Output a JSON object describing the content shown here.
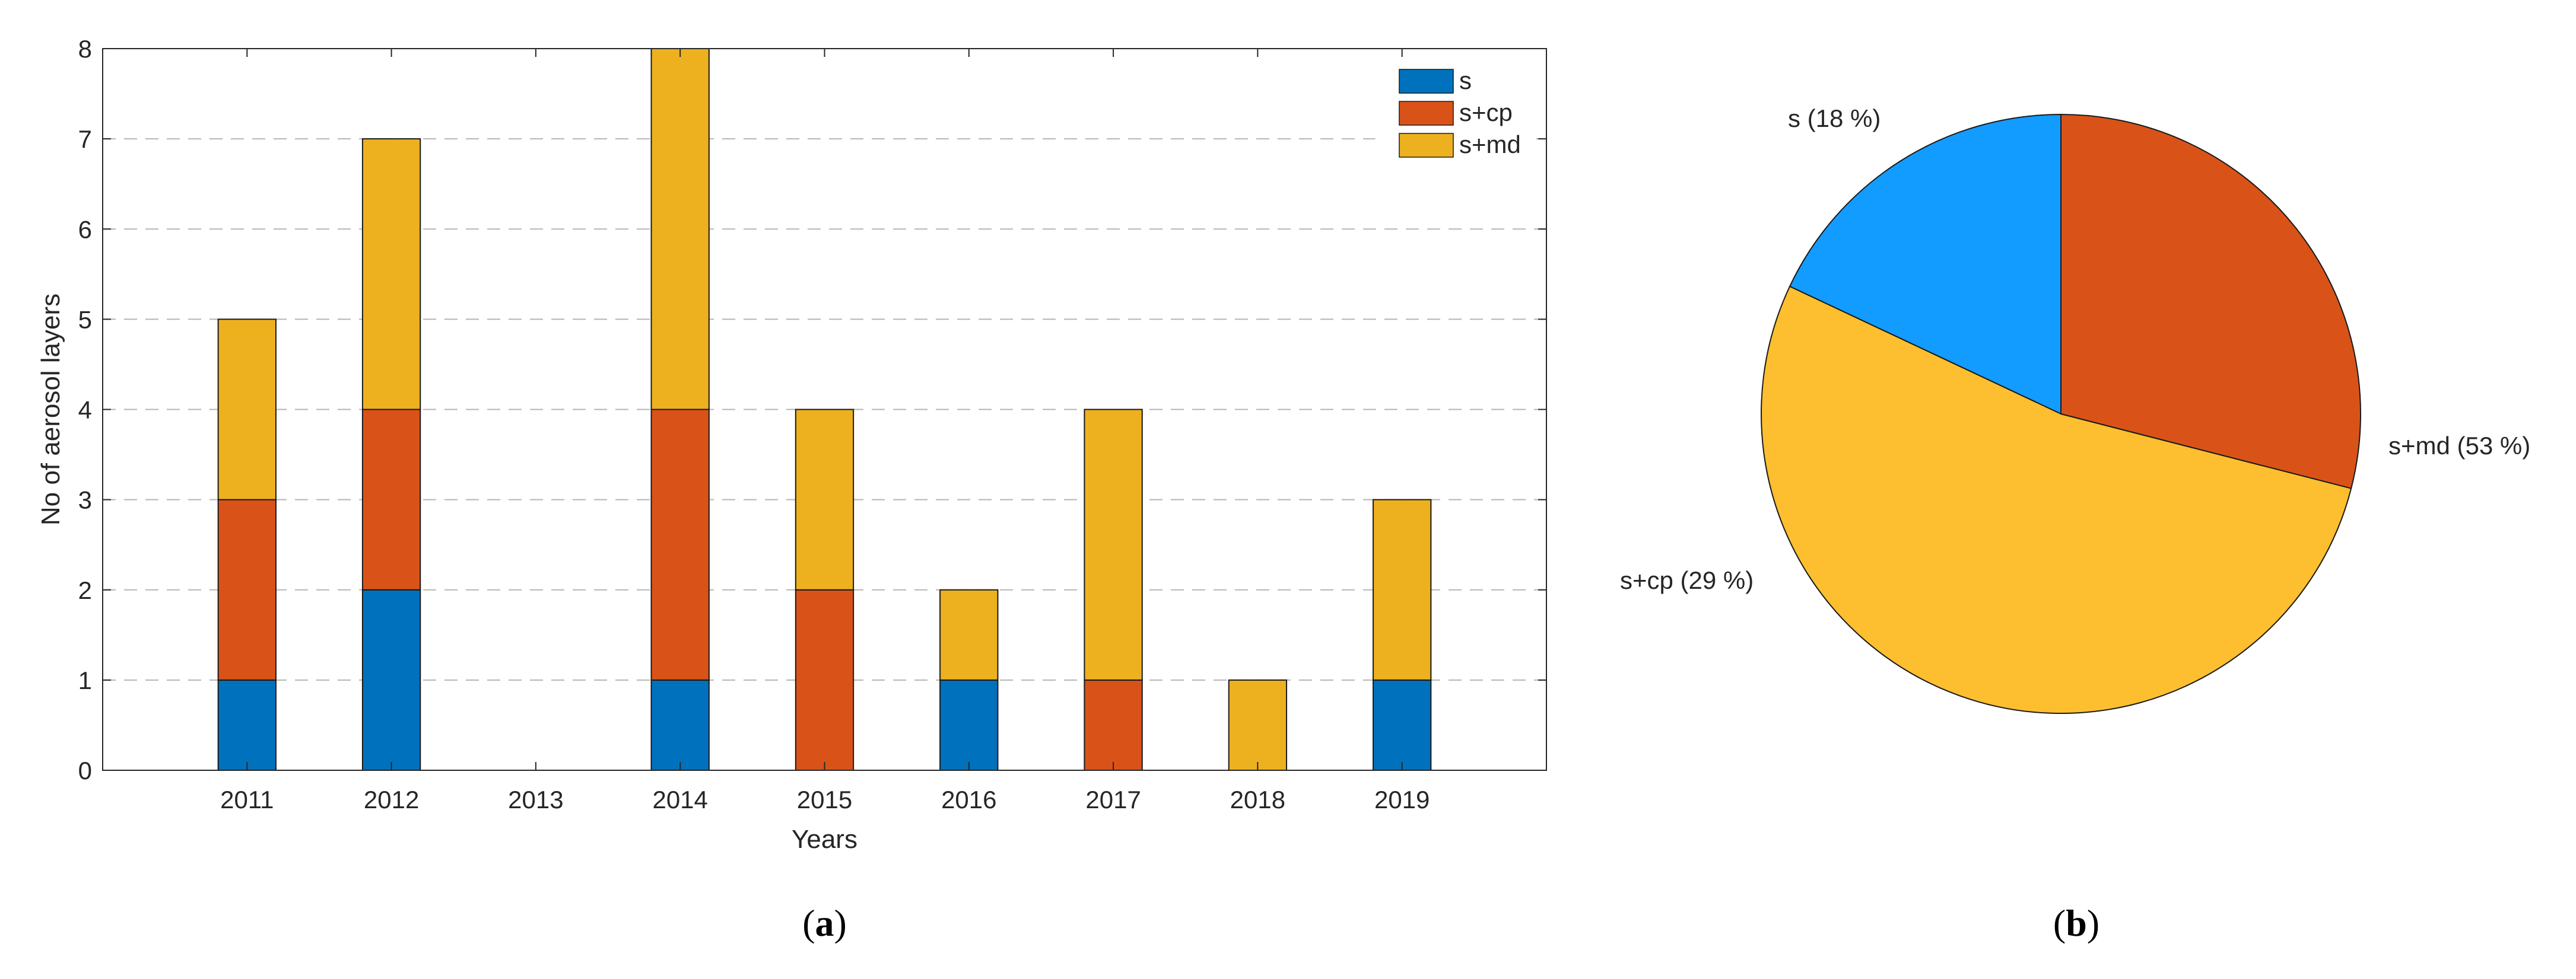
{
  "chart_data": [
    {
      "type": "bar",
      "stacked": true,
      "categories": [
        "2011",
        "2012",
        "2013",
        "2014",
        "2015",
        "2016",
        "2017",
        "2018",
        "2019"
      ],
      "series": [
        {
          "name": "s",
          "values": [
            1,
            2,
            0,
            1,
            0,
            1,
            0,
            0,
            1
          ],
          "color": "#0072BD"
        },
        {
          "name": "s+cp",
          "values": [
            2,
            2,
            0,
            3,
            2,
            0,
            1,
            0,
            0
          ],
          "color": "#D95319"
        },
        {
          "name": "s+md",
          "values": [
            2,
            3,
            0,
            4,
            2,
            1,
            3,
            1,
            2
          ],
          "color": "#EDB120"
        }
      ],
      "xlabel": "Years",
      "ylabel": "No of aerosol layers",
      "ylim": [
        0,
        8
      ],
      "yticks": [
        "0",
        "1",
        "2",
        "3",
        "4",
        "5",
        "6",
        "7",
        "8"
      ],
      "grid": "horizontal dashed",
      "legend_position": "top-right",
      "panel_label": "a"
    },
    {
      "type": "pie",
      "slices": [
        {
          "label": "s (18 %)",
          "value": 18,
          "color": "#129CFF"
        },
        {
          "label": "s+md (53 %)",
          "value": 53,
          "color": "#FDBF2F"
        },
        {
          "label": "s+cp (29 %)",
          "value": 29,
          "color": "#D95319"
        }
      ],
      "panel_label": "b"
    }
  ]
}
